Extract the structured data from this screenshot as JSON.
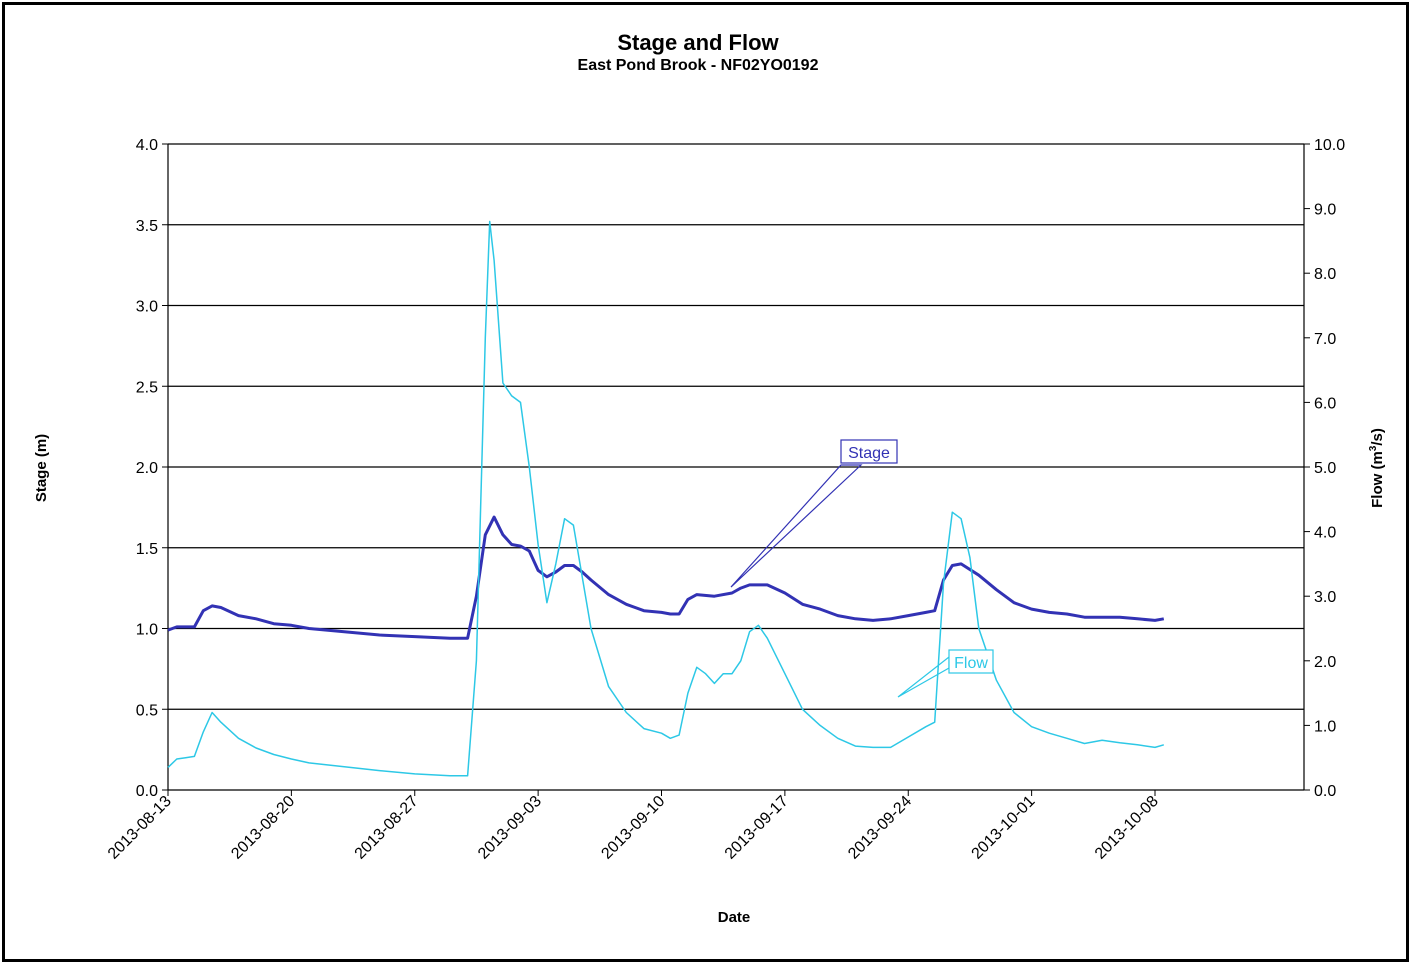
{
  "chart_data": {
    "type": "line",
    "title": "Stage and Flow",
    "subtitle": "East Pond Brook - NF02YO0192",
    "xlabel": "Date",
    "ylabel_left": "Stage (m)",
    "ylabel_right_prefix": "Flow (m",
    "ylabel_right_sup": "3",
    "ylabel_right_suffix": "/s)",
    "xlim": [
      "2013-08-13",
      "2013-10-08"
    ],
    "ylim_left": [
      0,
      4
    ],
    "ylim_right": [
      0,
      10
    ],
    "grid": "horizontal",
    "x_ticks": [
      "2013-08-13",
      "2013-08-20",
      "2013-08-27",
      "2013-09-03",
      "2013-09-10",
      "2013-09-17",
      "2013-09-24",
      "2013-10-01",
      "2013-10-08"
    ],
    "y_left_ticks": [
      "0.0",
      "0.5",
      "1.0",
      "1.5",
      "2.0",
      "2.5",
      "3.0",
      "3.5",
      "4.0"
    ],
    "y_right_ticks": [
      "0.0",
      "1.0",
      "2.0",
      "3.0",
      "4.0",
      "5.0",
      "6.0",
      "7.0",
      "8.0",
      "9.0",
      "10.0"
    ],
    "annotations": [
      {
        "text": "Stage",
        "series": "Stage"
      },
      {
        "text": "Flow",
        "series": "Flow"
      }
    ],
    "series": [
      {
        "name": "Stage",
        "axis": "left",
        "color": "#3232b4",
        "points": [
          [
            "2013-08-13",
            0.99
          ],
          [
            "2013-08-13T12:00",
            1.01
          ],
          [
            "2013-08-14",
            1.01
          ],
          [
            "2013-08-14T12:00",
            1.01
          ],
          [
            "2013-08-15",
            1.11
          ],
          [
            "2013-08-15T12:00",
            1.14
          ],
          [
            "2013-08-16",
            1.13
          ],
          [
            "2013-08-17",
            1.08
          ],
          [
            "2013-08-18",
            1.06
          ],
          [
            "2013-08-19",
            1.03
          ],
          [
            "2013-08-20",
            1.02
          ],
          [
            "2013-08-21",
            1.0
          ],
          [
            "2013-08-23",
            0.98
          ],
          [
            "2013-08-25",
            0.96
          ],
          [
            "2013-08-27",
            0.95
          ],
          [
            "2013-08-29",
            0.94
          ],
          [
            "2013-08-30",
            0.94
          ],
          [
            "2013-08-30T12:00",
            1.2
          ],
          [
            "2013-08-31",
            1.58
          ],
          [
            "2013-08-31T12:00",
            1.69
          ],
          [
            "2013-09-01",
            1.58
          ],
          [
            "2013-09-01T12:00",
            1.52
          ],
          [
            "2013-09-02",
            1.51
          ],
          [
            "2013-09-02T12:00",
            1.48
          ],
          [
            "2013-09-03",
            1.36
          ],
          [
            "2013-09-03T12:00",
            1.32
          ],
          [
            "2013-09-04",
            1.35
          ],
          [
            "2013-09-04T12:00",
            1.39
          ],
          [
            "2013-09-05",
            1.39
          ],
          [
            "2013-09-05T12:00",
            1.35
          ],
          [
            "2013-09-06",
            1.3
          ],
          [
            "2013-09-07",
            1.21
          ],
          [
            "2013-09-08",
            1.15
          ],
          [
            "2013-09-09",
            1.11
          ],
          [
            "2013-09-10",
            1.1
          ],
          [
            "2013-09-10T12:00",
            1.09
          ],
          [
            "2013-09-11",
            1.09
          ],
          [
            "2013-09-11T12:00",
            1.18
          ],
          [
            "2013-09-12",
            1.21
          ],
          [
            "2013-09-13",
            1.2
          ],
          [
            "2013-09-14",
            1.22
          ],
          [
            "2013-09-14T12:00",
            1.25
          ],
          [
            "2013-09-15",
            1.27
          ],
          [
            "2013-09-16",
            1.27
          ],
          [
            "2013-09-17",
            1.22
          ],
          [
            "2013-09-18",
            1.15
          ],
          [
            "2013-09-19",
            1.12
          ],
          [
            "2013-09-20",
            1.08
          ],
          [
            "2013-09-21",
            1.06
          ],
          [
            "2013-09-22",
            1.05
          ],
          [
            "2013-09-23",
            1.06
          ],
          [
            "2013-09-24",
            1.08
          ],
          [
            "2013-09-25",
            1.1
          ],
          [
            "2013-09-25T12:00",
            1.11
          ],
          [
            "2013-09-26",
            1.3
          ],
          [
            "2013-09-26T12:00",
            1.39
          ],
          [
            "2013-09-27",
            1.4
          ],
          [
            "2013-09-28",
            1.33
          ],
          [
            "2013-09-29",
            1.24
          ],
          [
            "2013-09-30",
            1.16
          ],
          [
            "2013-10-01",
            1.12
          ],
          [
            "2013-10-02",
            1.1
          ],
          [
            "2013-10-03",
            1.09
          ],
          [
            "2013-10-04",
            1.07
          ],
          [
            "2013-10-05",
            1.07
          ],
          [
            "2013-10-06",
            1.07
          ],
          [
            "2013-10-07",
            1.06
          ],
          [
            "2013-10-08",
            1.05
          ],
          [
            "2013-10-08T12:00",
            1.06
          ]
        ]
      },
      {
        "name": "Flow",
        "axis": "right",
        "color": "#2dc8e6",
        "points": [
          [
            "2013-08-13",
            0.35
          ],
          [
            "2013-08-13T12:00",
            0.48
          ],
          [
            "2013-08-14",
            0.5
          ],
          [
            "2013-08-14T12:00",
            0.52
          ],
          [
            "2013-08-15",
            0.9
          ],
          [
            "2013-08-15T12:00",
            1.2
          ],
          [
            "2013-08-16",
            1.05
          ],
          [
            "2013-08-17",
            0.8
          ],
          [
            "2013-08-18",
            0.65
          ],
          [
            "2013-08-19",
            0.55
          ],
          [
            "2013-08-20",
            0.48
          ],
          [
            "2013-08-21",
            0.42
          ],
          [
            "2013-08-23",
            0.36
          ],
          [
            "2013-08-25",
            0.3
          ],
          [
            "2013-08-27",
            0.25
          ],
          [
            "2013-08-29",
            0.22
          ],
          [
            "2013-08-30",
            0.22
          ],
          [
            "2013-08-30T12:00",
            2.0
          ],
          [
            "2013-08-31",
            7.0
          ],
          [
            "2013-08-31T06:00",
            8.8
          ],
          [
            "2013-08-31T12:00",
            8.2
          ],
          [
            "2013-09-01",
            6.3
          ],
          [
            "2013-09-01T12:00",
            6.1
          ],
          [
            "2013-09-02",
            6.0
          ],
          [
            "2013-09-02T12:00",
            5.0
          ],
          [
            "2013-09-03",
            3.8
          ],
          [
            "2013-09-03T12:00",
            2.9
          ],
          [
            "2013-09-04",
            3.5
          ],
          [
            "2013-09-04T12:00",
            4.2
          ],
          [
            "2013-09-05",
            4.1
          ],
          [
            "2013-09-05T12:00",
            3.3
          ],
          [
            "2013-09-06",
            2.5
          ],
          [
            "2013-09-07",
            1.6
          ],
          [
            "2013-09-08",
            1.2
          ],
          [
            "2013-09-09",
            0.95
          ],
          [
            "2013-09-10",
            0.88
          ],
          [
            "2013-09-10T12:00",
            0.8
          ],
          [
            "2013-09-11",
            0.85
          ],
          [
            "2013-09-11T12:00",
            1.5
          ],
          [
            "2013-09-12",
            1.9
          ],
          [
            "2013-09-12T12:00",
            1.8
          ],
          [
            "2013-09-13",
            1.65
          ],
          [
            "2013-09-13T12:00",
            1.8
          ],
          [
            "2013-09-14",
            1.8
          ],
          [
            "2013-09-14T12:00",
            2.0
          ],
          [
            "2013-09-15",
            2.45
          ],
          [
            "2013-09-15T12:00",
            2.55
          ],
          [
            "2013-09-16",
            2.35
          ],
          [
            "2013-09-17",
            1.8
          ],
          [
            "2013-09-18",
            1.25
          ],
          [
            "2013-09-19",
            1.0
          ],
          [
            "2013-09-20",
            0.8
          ],
          [
            "2013-09-21",
            0.68
          ],
          [
            "2013-09-22",
            0.66
          ],
          [
            "2013-09-23",
            0.66
          ],
          [
            "2013-09-24",
            0.82
          ],
          [
            "2013-09-25",
            0.98
          ],
          [
            "2013-09-25T12:00",
            1.05
          ],
          [
            "2013-09-26",
            3.2
          ],
          [
            "2013-09-26T12:00",
            4.3
          ],
          [
            "2013-09-27",
            4.2
          ],
          [
            "2013-09-27T12:00",
            3.6
          ],
          [
            "2013-09-28",
            2.5
          ],
          [
            "2013-09-29",
            1.7
          ],
          [
            "2013-09-30",
            1.2
          ],
          [
            "2013-10-01",
            0.98
          ],
          [
            "2013-10-02",
            0.88
          ],
          [
            "2013-10-03",
            0.8
          ],
          [
            "2013-10-04",
            0.72
          ],
          [
            "2013-10-05",
            0.77
          ],
          [
            "2013-10-06",
            0.73
          ],
          [
            "2013-10-07",
            0.7
          ],
          [
            "2013-10-08",
            0.66
          ],
          [
            "2013-10-08T12:00",
            0.7
          ]
        ]
      }
    ]
  }
}
